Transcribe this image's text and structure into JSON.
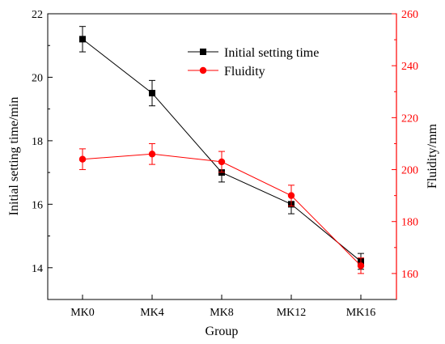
{
  "chart_data": {
    "type": "line",
    "categories": [
      "MK0",
      "MK4",
      "MK8",
      "MK12",
      "MK16"
    ],
    "xlabel": "Group",
    "series": [
      {
        "name": "Initial setting time",
        "axis": "left",
        "values": [
          21.2,
          19.5,
          17.0,
          16.0,
          14.2
        ],
        "errors": [
          0.4,
          0.4,
          0.3,
          0.3,
          0.25
        ],
        "color": "#000000",
        "marker": "square"
      },
      {
        "name": "Fluidity",
        "axis": "right",
        "values": [
          204,
          206,
          203,
          190,
          163
        ],
        "errors": [
          4,
          4,
          4,
          4,
          3
        ],
        "color": "#ff0000",
        "marker": "circle"
      }
    ],
    "y_left": {
      "label": "Initial setting time/min",
      "ylim": [
        13,
        22
      ],
      "ticks": [
        14,
        16,
        18,
        20,
        22
      ],
      "color": "#000000"
    },
    "y_right": {
      "label": "Fluidity/mm",
      "ylim": [
        150,
        260
      ],
      "ticks": [
        160,
        180,
        200,
        220,
        240,
        260
      ],
      "color": "#ff0000"
    },
    "grid": false,
    "legend_position": "top-right"
  }
}
